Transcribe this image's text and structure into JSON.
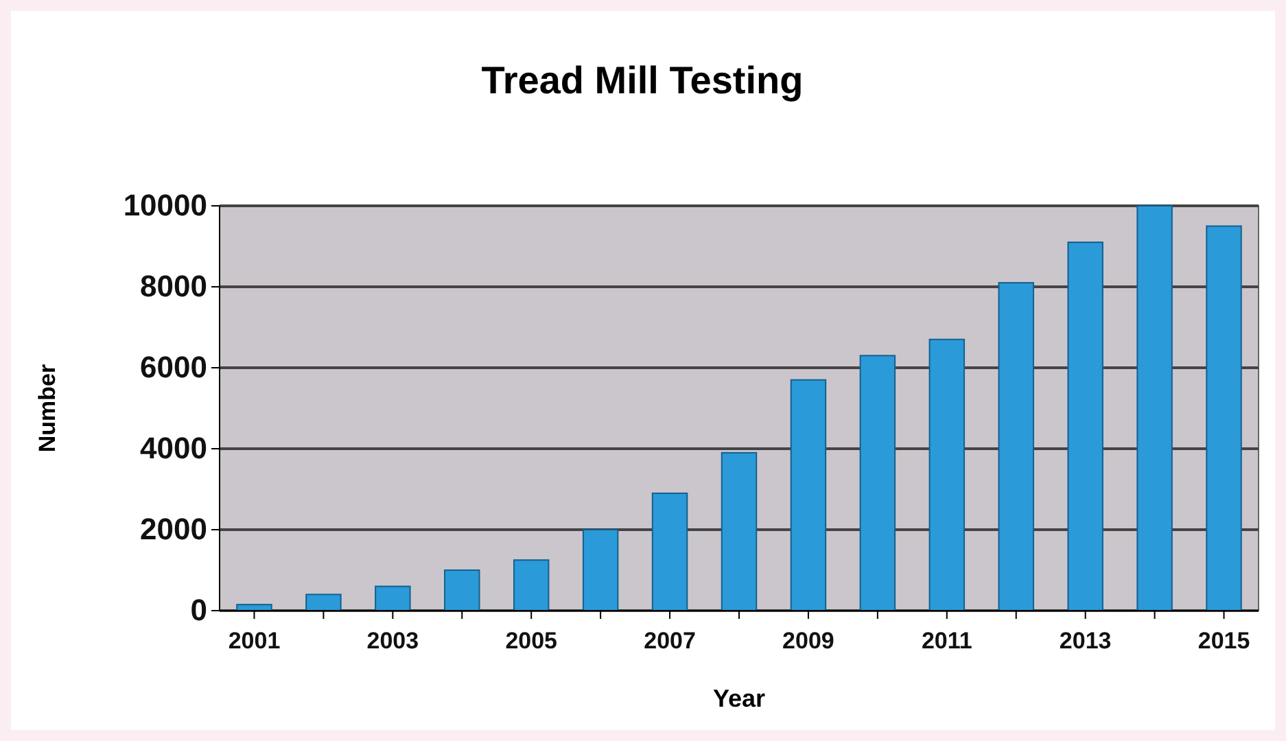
{
  "chart_data": {
    "type": "bar",
    "title": "Tread Mill Testing",
    "xlabel": "Year",
    "ylabel": "Number",
    "categories": [
      "2001",
      null,
      "2003",
      null,
      "2005",
      null,
      "2007",
      null,
      "2009",
      null,
      "2011",
      null,
      "2013",
      null,
      "2015"
    ],
    "values": [
      150,
      400,
      600,
      1000,
      1250,
      2000,
      2900,
      3900,
      5700,
      6300,
      6700,
      8100,
      9100,
      10000,
      9500
    ],
    "color": "#2b9ad8",
    "ylim": [
      0,
      10000
    ],
    "yticks": [
      0,
      2000,
      4000,
      6000,
      8000,
      10000
    ],
    "grid": "y"
  }
}
